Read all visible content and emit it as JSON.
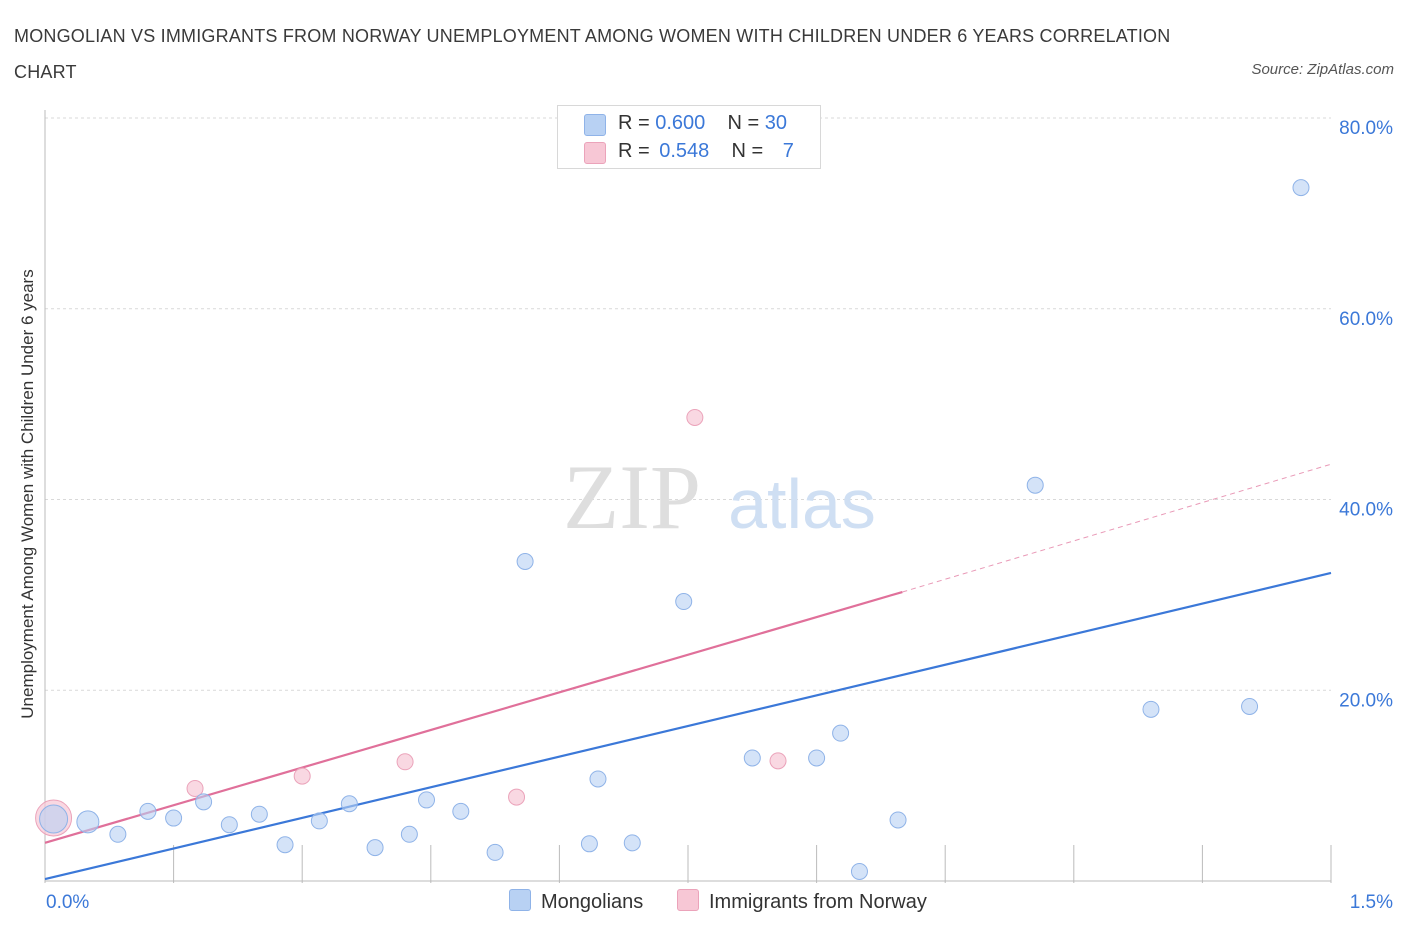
{
  "title": "MONGOLIAN VS IMMIGRANTS FROM NORWAY UNEMPLOYMENT AMONG WOMEN WITH CHILDREN UNDER 6 YEARS CORRELATION CHART",
  "source": "Source: ZipAtlas.com",
  "watermark": {
    "zip": "ZIP",
    "atlas": "atlas"
  },
  "colors": {
    "blue": "#3b78d8",
    "pink": "#e0709a",
    "blue_fill": "#b8d1f3",
    "pink_fill": "#f7c7d5",
    "grid": "#d9d9d9"
  },
  "legend": {
    "rows": [
      {
        "r_label": "R =",
        "r_value": "0.600",
        "n_label": "N =",
        "n_value": "30"
      },
      {
        "r_label": "R =",
        "r_value": "0.548",
        "n_label": "N =",
        "n_value": "7"
      }
    ]
  },
  "bottom_legend": {
    "mongolians": "Mongolians",
    "norway": "Immigrants from Norway"
  },
  "chart_data": {
    "type": "scatter",
    "title": "MONGOLIAN VS IMMIGRANTS FROM NORWAY UNEMPLOYMENT AMONG WOMEN WITH CHILDREN UNDER 6 YEARS CORRELATION CHART",
    "xlabel": "",
    "ylabel": "Unemployment Among Women with Children Under 6 years",
    "xlim": [
      0,
      1.5
    ],
    "ylim": [
      0,
      80
    ],
    "x_tick_labels": [
      "0.0%",
      "1.5%"
    ],
    "y_tick_labels": [
      "20.0%",
      "40.0%",
      "60.0%",
      "80.0%"
    ],
    "y_ticks": [
      20,
      40,
      60,
      80
    ],
    "grid": true,
    "legend_position": "top-center",
    "series": [
      {
        "name": "Mongolians",
        "color": "#3b78d8",
        "points": [
          {
            "x": 0.01,
            "y": 6.5,
            "s": 14
          },
          {
            "x": 0.05,
            "y": 6.2,
            "s": 11
          },
          {
            "x": 0.085,
            "y": 4.9,
            "s": 8
          },
          {
            "x": 0.12,
            "y": 7.3,
            "s": 8
          },
          {
            "x": 0.15,
            "y": 6.6,
            "s": 8
          },
          {
            "x": 0.185,
            "y": 8.3,
            "s": 8
          },
          {
            "x": 0.215,
            "y": 5.9,
            "s": 8
          },
          {
            "x": 0.25,
            "y": 7.0,
            "s": 8
          },
          {
            "x": 0.28,
            "y": 3.8,
            "s": 8
          },
          {
            "x": 0.32,
            "y": 6.3,
            "s": 8
          },
          {
            "x": 0.355,
            "y": 8.1,
            "s": 8
          },
          {
            "x": 0.385,
            "y": 3.5,
            "s": 8
          },
          {
            "x": 0.425,
            "y": 4.9,
            "s": 8
          },
          {
            "x": 0.445,
            "y": 8.5,
            "s": 8
          },
          {
            "x": 0.485,
            "y": 7.3,
            "s": 8
          },
          {
            "x": 0.525,
            "y": 3.0,
            "s": 8
          },
          {
            "x": 0.56,
            "y": 33.5,
            "s": 8
          },
          {
            "x": 0.635,
            "y": 3.9,
            "s": 8
          },
          {
            "x": 0.645,
            "y": 10.7,
            "s": 8
          },
          {
            "x": 0.685,
            "y": 4.0,
            "s": 8
          },
          {
            "x": 0.745,
            "y": 29.3,
            "s": 8
          },
          {
            "x": 0.825,
            "y": 12.9,
            "s": 8
          },
          {
            "x": 0.9,
            "y": 12.9,
            "s": 8
          },
          {
            "x": 0.928,
            "y": 15.5,
            "s": 8
          },
          {
            "x": 0.95,
            "y": 1.0,
            "s": 8
          },
          {
            "x": 0.995,
            "y": 6.4,
            "s": 8
          },
          {
            "x": 1.155,
            "y": 41.5,
            "s": 8
          },
          {
            "x": 1.29,
            "y": 18.0,
            "s": 8
          },
          {
            "x": 1.405,
            "y": 18.3,
            "s": 8
          },
          {
            "x": 1.465,
            "y": 72.7,
            "s": 8
          }
        ],
        "trend": {
          "x": [
            0,
            1.5
          ],
          "y": [
            0.2,
            32.3
          ]
        }
      },
      {
        "name": "Immigrants from Norway",
        "color": "#e0709a",
        "points": [
          {
            "x": 0.01,
            "y": 6.6,
            "s": 18
          },
          {
            "x": 0.175,
            "y": 9.7,
            "s": 8
          },
          {
            "x": 0.3,
            "y": 11.0,
            "s": 8
          },
          {
            "x": 0.42,
            "y": 12.5,
            "s": 8
          },
          {
            "x": 0.55,
            "y": 8.8,
            "s": 8
          },
          {
            "x": 0.758,
            "y": 48.6,
            "s": 8
          },
          {
            "x": 0.855,
            "y": 12.6,
            "s": 8
          }
        ],
        "trend": {
          "x": [
            0,
            1.0
          ],
          "y": [
            4.0,
            30.3
          ]
        },
        "trend_extension": {
          "x": [
            1.0,
            1.5
          ],
          "y": [
            30.3,
            43.7
          ]
        }
      }
    ]
  }
}
